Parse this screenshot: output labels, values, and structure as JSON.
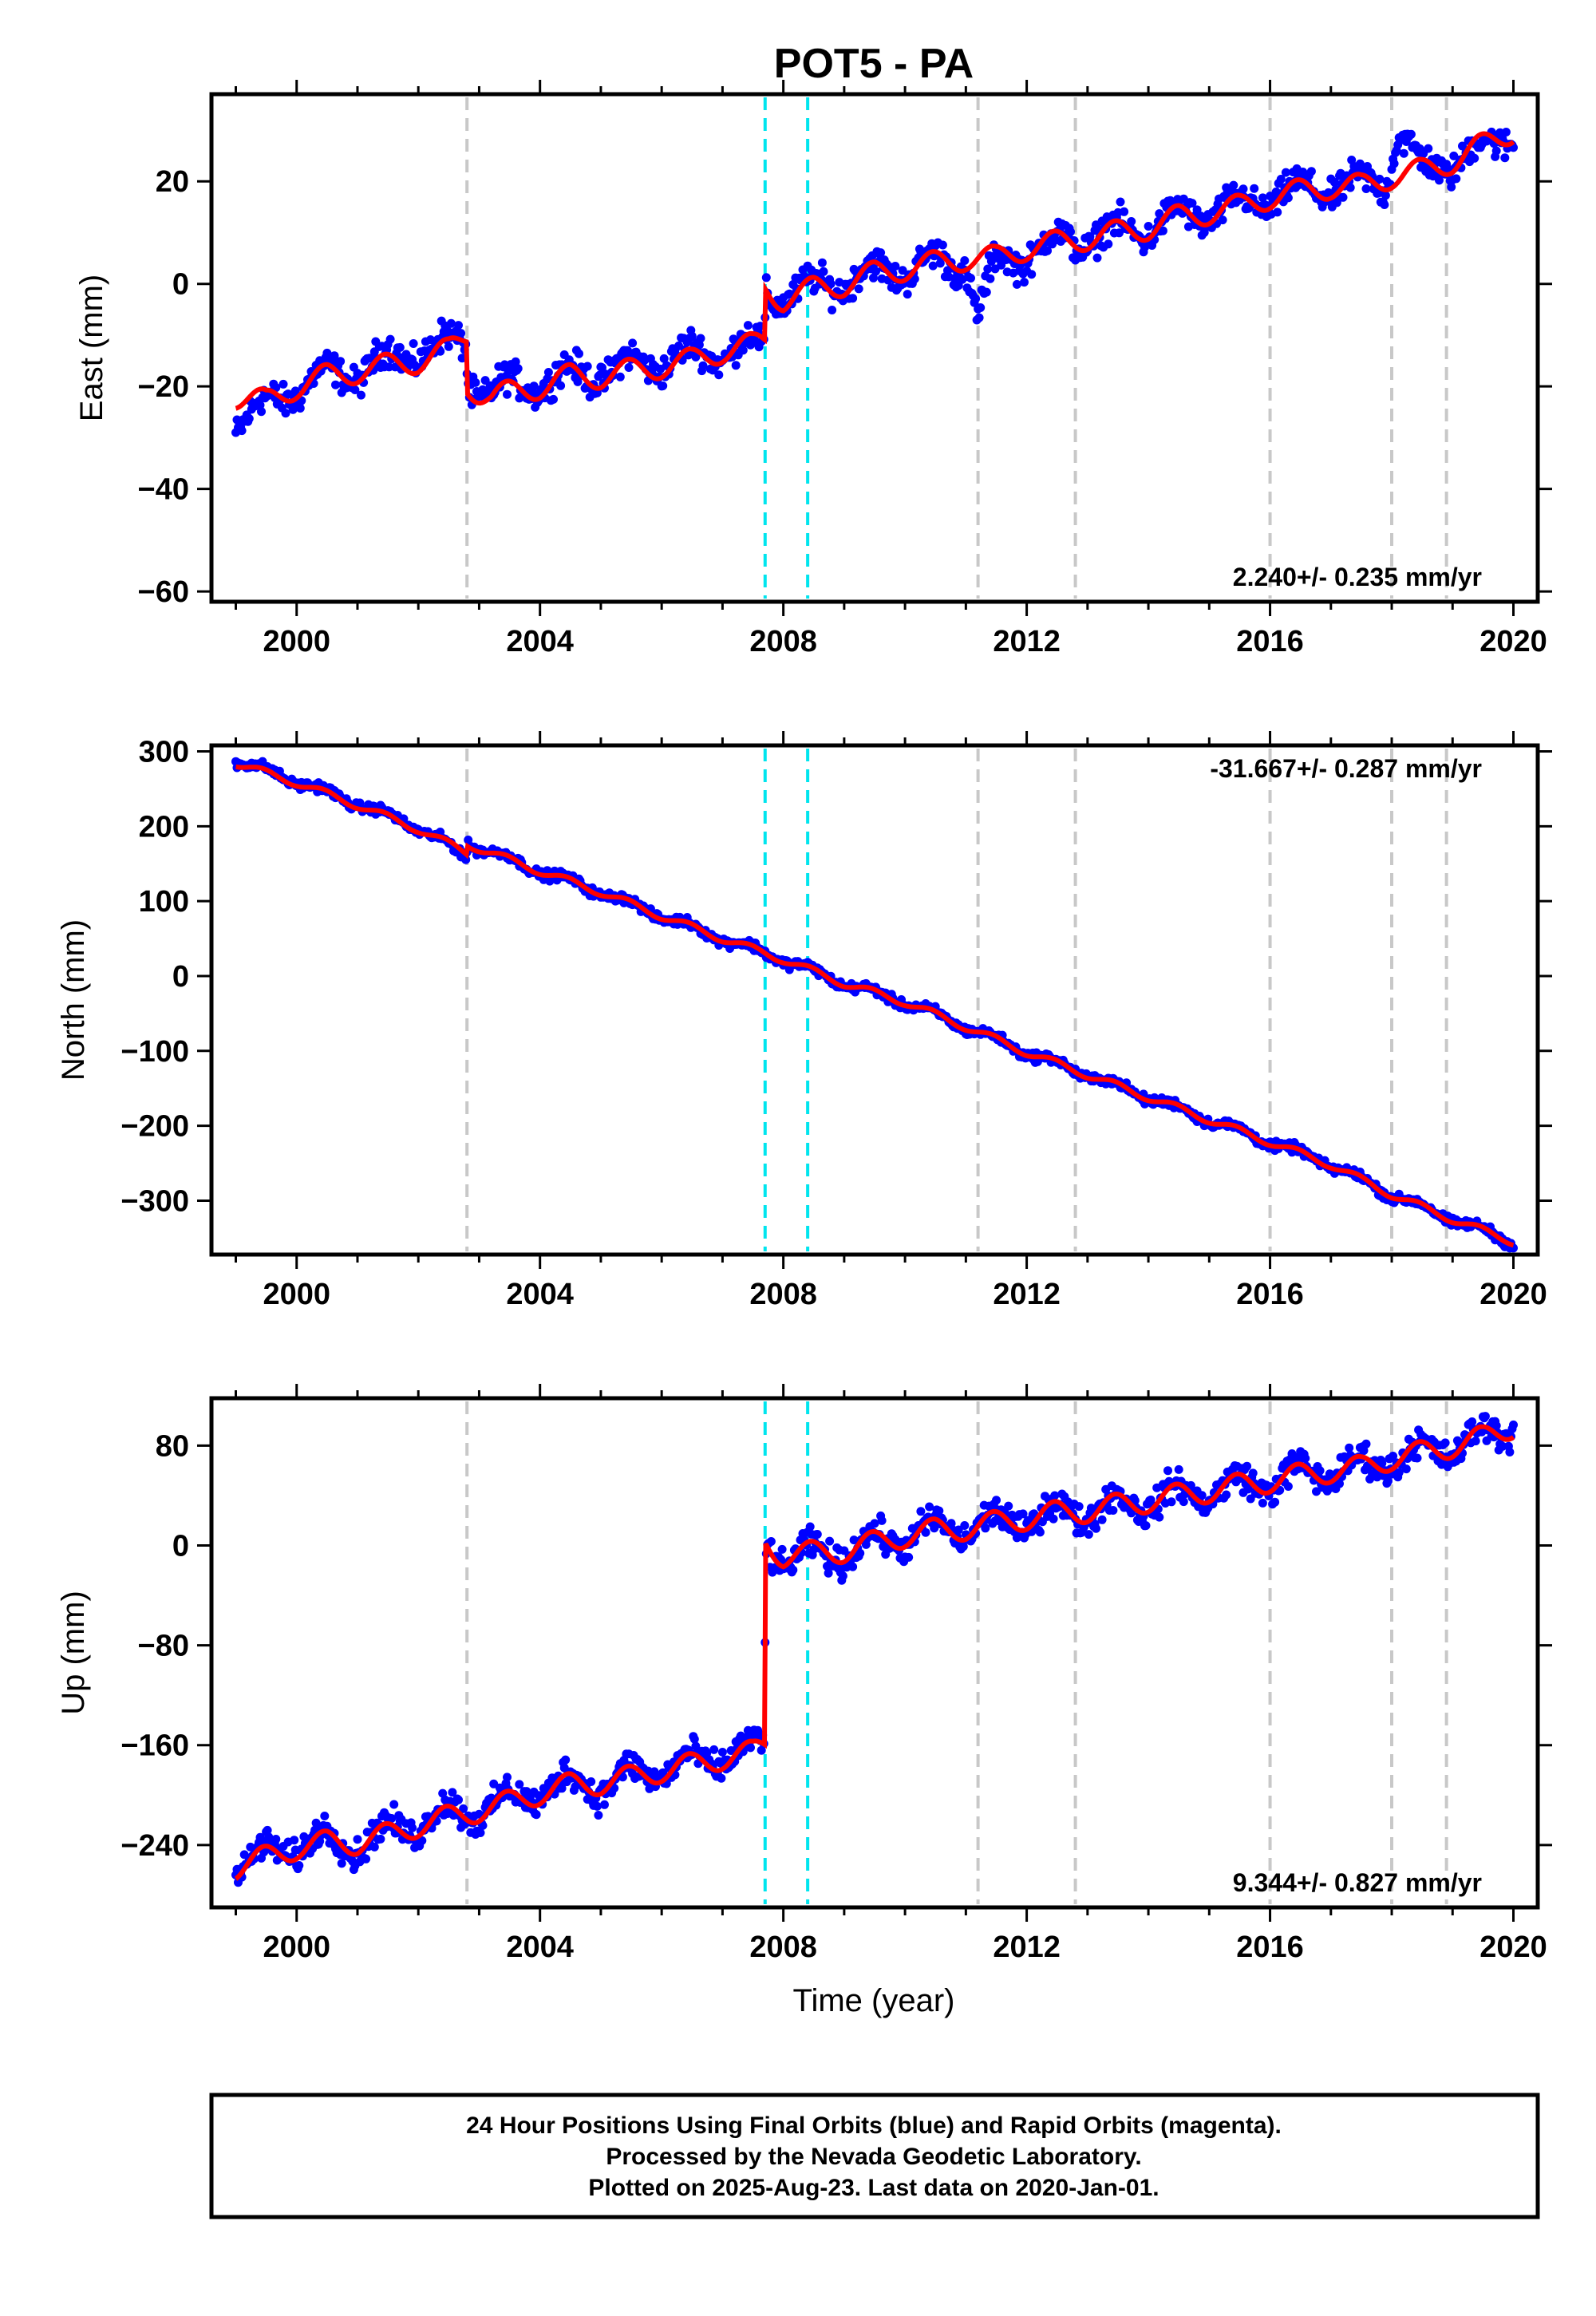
{
  "page_title": "POT5 - PA",
  "footer": {
    "line1": "24 Hour Positions Using Final Orbits (blue) and Rapid Orbits (magenta).",
    "line2": "Processed by the Nevada Geodetic Laboratory.",
    "line3": "Plotted on 2025-Aug-23. Last data on 2020-Jan-01."
  },
  "x_axis": {
    "label": "Time (year)",
    "range": [
      1998.6,
      2020.4
    ],
    "ticks": [
      2000,
      2004,
      2008,
      2012,
      2016,
      2020
    ],
    "tick_labels": [
      "2000",
      "2004",
      "2008",
      "2012",
      "2016",
      "2020"
    ],
    "minor_step": 1
  },
  "vertical_markers": {
    "gray_years": [
      2002.8,
      2011.2,
      2012.8,
      2016.0,
      2018.0,
      2018.9
    ],
    "cyan_years": [
      2007.7,
      2008.4
    ],
    "gray_color": "#c8c8c8",
    "cyan_color": "#00e5ee"
  },
  "colors": {
    "data_points": "#0000ff",
    "model_line": "#ff0000",
    "frame": "#000000"
  },
  "chart_data": [
    {
      "type": "scatter",
      "component": "east",
      "ylabel": "East (mm)",
      "ylim": [
        -62,
        37
      ],
      "yticks": [
        20,
        0,
        -20,
        -40,
        -60
      ],
      "ytick_labels": [
        "20",
        "0",
        "−20",
        "−40",
        "−60"
      ],
      "rate_label": "2.240+/- 0.235 mm/yr",
      "rate_position": "bottom-right",
      "series": [
        {
          "name": "Final orbits (blue)",
          "x": [
            1999.0,
            1999.5,
            2000.0,
            2000.5,
            2001.0,
            2001.5,
            2002.0,
            2002.5,
            2002.79,
            2002.81,
            2003.2,
            2003.6,
            2004.0,
            2004.5,
            2005.0,
            2005.5,
            2006.0,
            2006.5,
            2007.0,
            2007.5,
            2007.69,
            2007.71,
            2008.0,
            2008.5,
            2009.0,
            2009.5,
            2010.0,
            2010.5,
            2011.0,
            2011.2,
            2011.5,
            2012.0,
            2012.5,
            2013.0,
            2013.5,
            2014.0,
            2014.5,
            2015.0,
            2015.5,
            2016.0,
            2016.5,
            2016.9,
            2017.4,
            2017.9,
            2018.1,
            2018.5,
            2019.0,
            2019.5,
            2020.0
          ],
          "y": [
            -27,
            -24,
            -20,
            -18,
            -17,
            -15,
            -13,
            -12,
            -11,
            -19,
            -21,
            -20,
            -19,
            -18,
            -17,
            -16,
            -15,
            -14,
            -13,
            -12,
            -12,
            -2,
            -2,
            -1,
            1,
            2,
            3,
            4,
            4,
            -6,
            4,
            6,
            8,
            9,
            10,
            11,
            13,
            14,
            15,
            17,
            18,
            19,
            19,
            20,
            30,
            22,
            24,
            26,
            30
          ],
          "spread": 3
        },
        {
          "name": "Model",
          "x": [
            1999.0,
            1999.5,
            2000.0,
            2000.5,
            2001.0,
            2001.5,
            2002.0,
            2002.5,
            2002.79,
            2002.81,
            2003.2,
            2003.6,
            2004.0,
            2004.5,
            2005.0,
            2005.5,
            2006.0,
            2006.5,
            2007.0,
            2007.5,
            2007.69,
            2007.71,
            2008.0,
            2008.5,
            2009.0,
            2009.5,
            2010.0,
            2010.5,
            2011.0,
            2011.5,
            2012.0,
            2012.5,
            2013.0,
            2013.5,
            2014.0,
            2014.5,
            2015.0,
            2015.5,
            2016.0,
            2016.5,
            2017.0,
            2017.5,
            2018.0,
            2018.5,
            2019.0,
            2019.5,
            2020.0
          ],
          "y": [
            -22,
            -23,
            -20,
            -18,
            -17,
            -16,
            -15,
            -13,
            -10,
            -20,
            -22,
            -21,
            -20,
            -18,
            -18,
            -17,
            -16,
            -15,
            -13,
            -12,
            -11,
            -1,
            -3,
            -1,
            0,
            2,
            3,
            4,
            5,
            5,
            7,
            8,
            9,
            10,
            11,
            13,
            14,
            15,
            17,
            18,
            19,
            19,
            21,
            22,
            24,
            27,
            30
          ]
        }
      ]
    },
    {
      "type": "scatter",
      "component": "north",
      "ylabel": "North (mm)",
      "ylim": [
        -372,
        308
      ],
      "yticks": [
        300,
        200,
        100,
        0,
        -100,
        -200,
        -300
      ],
      "ytick_labels": [
        "300",
        "200",
        "100",
        "0",
        "−100",
        "−200",
        "−300"
      ],
      "rate_label": "-31.667+/- 0.287 mm/yr",
      "rate_position": "top-right",
      "series": [
        {
          "name": "Final orbits (blue)",
          "x": [
            1999.0,
            2000.0,
            2001.0,
            2002.0,
            2002.79,
            2002.81,
            2004.0,
            2005.0,
            2006.0,
            2007.0,
            2008.0,
            2009.0,
            2010.0,
            2011.0,
            2012.0,
            2013.0,
            2014.0,
            2015.0,
            2016.0,
            2017.0,
            2018.0,
            2019.0,
            2020.0
          ],
          "y": [
            288,
            260,
            230,
            198,
            160,
            178,
            140,
            112,
            80,
            50,
            22,
            -10,
            -35,
            -68,
            -102,
            -132,
            -162,
            -192,
            -222,
            -252,
            -292,
            -325,
            -355
          ],
          "spread": 6
        },
        {
          "name": "Model",
          "x": [
            1999.0,
            2000.0,
            2001.0,
            2002.0,
            2002.79,
            2002.81,
            2004.0,
            2005.0,
            2006.0,
            2007.0,
            2008.0,
            2009.0,
            2010.0,
            2011.0,
            2012.0,
            2013.0,
            2014.0,
            2015.0,
            2016.0,
            2017.0,
            2018.0,
            2019.0,
            2020.0
          ],
          "y": [
            284,
            258,
            228,
            196,
            165,
            176,
            140,
            112,
            80,
            50,
            22,
            -10,
            -35,
            -68,
            -102,
            -132,
            -162,
            -192,
            -222,
            -252,
            -292,
            -325,
            -355
          ]
        }
      ]
    },
    {
      "type": "scatter",
      "component": "up",
      "ylabel": "Up (mm)",
      "ylim": [
        -290,
        118
      ],
      "yticks": [
        80,
        0,
        -80,
        -160,
        -240
      ],
      "ytick_labels": [
        "80",
        "0",
        "−80",
        "−160",
        "−240"
      ],
      "rate_label": "9.344+/- 0.827 mm/yr",
      "rate_position": "bottom-right",
      "series": [
        {
          "name": "Final orbits (blue)",
          "x": [
            1999.0,
            1999.5,
            2000.0,
            2000.5,
            2001.0,
            2001.5,
            2002.0,
            2002.5,
            2003.0,
            2003.5,
            2004.0,
            2004.5,
            2005.0,
            2005.5,
            2006.0,
            2006.5,
            2007.0,
            2007.5,
            2007.69,
            2007.71,
            2008.0,
            2008.5,
            2009.0,
            2009.5,
            2010.0,
            2010.5,
            2011.0,
            2011.5,
            2012.0,
            2012.5,
            2013.0,
            2013.5,
            2014.0,
            2014.5,
            2015.0,
            2015.5,
            2016.0,
            2016.5,
            2017.0,
            2017.5,
            2018.0,
            2018.5,
            2019.0,
            2019.5,
            2020.0
          ],
          "y": [
            -258,
            -248,
            -240,
            -236,
            -240,
            -230,
            -222,
            -215,
            -212,
            -205,
            -196,
            -190,
            -192,
            -185,
            -178,
            -175,
            -168,
            -165,
            -160,
            0,
            -10,
            -8,
            -5,
            2,
            8,
            12,
            14,
            18,
            22,
            26,
            28,
            32,
            36,
            40,
            44,
            48,
            52,
            56,
            60,
            62,
            70,
            74,
            80,
            86,
            98
          ],
          "spread": 12
        },
        {
          "name": "Model",
          "x": [
            1999.0,
            1999.5,
            2000.0,
            2000.5,
            2001.0,
            2001.5,
            2002.0,
            2002.5,
            2003.0,
            2003.5,
            2004.0,
            2004.5,
            2005.0,
            2005.5,
            2006.0,
            2006.5,
            2007.0,
            2007.5,
            2007.69,
            2007.71,
            2008.0,
            2008.5,
            2009.0,
            2009.5,
            2010.0,
            2010.5,
            2011.0,
            2011.5,
            2012.0,
            2012.5,
            2013.0,
            2013.5,
            2014.0,
            2014.5,
            2015.0,
            2015.5,
            2016.0,
            2016.5,
            2017.0,
            2017.5,
            2018.0,
            2018.5,
            2019.0,
            2019.5,
            2020.0
          ],
          "y": [
            -258,
            -250,
            -242,
            -238,
            -238,
            -232,
            -224,
            -218,
            -212,
            -206,
            -198,
            -192,
            -190,
            -186,
            -180,
            -176,
            -170,
            -166,
            -160,
            2,
            -8,
            -6,
            -4,
            2,
            8,
            12,
            14,
            18,
            22,
            26,
            28,
            32,
            36,
            40,
            44,
            48,
            52,
            56,
            60,
            62,
            70,
            74,
            80,
            86,
            96
          ]
        }
      ]
    }
  ]
}
